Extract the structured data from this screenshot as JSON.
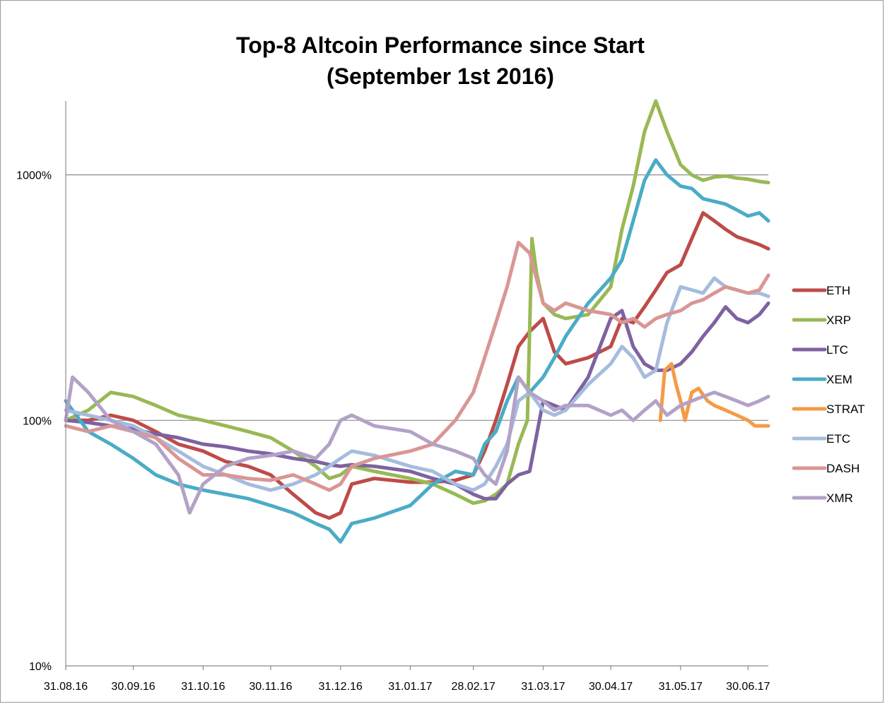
{
  "chart_data": {
    "type": "line",
    "title": "Top-8 Altcoin Performance since Start",
    "subtitle": "(September 1st 2016)",
    "xlabel": "",
    "ylabel": "",
    "y_scale": "log",
    "ylim": [
      10,
      2000
    ],
    "y_ticks": [
      {
        "value": 10,
        "label": "10%"
      },
      {
        "value": 100,
        "label": "100%"
      },
      {
        "value": 1000,
        "label": "1000%"
      }
    ],
    "x_ticks": [
      "31.08.16",
      "30.09.16",
      "31.10.16",
      "30.11.16",
      "31.12.16",
      "31.01.17",
      "28.02.17",
      "31.03.17",
      "30.04.17",
      "31.05.17",
      "30.06.17"
    ],
    "x_tick_dates": [
      "2016-08-31",
      "2016-09-30",
      "2016-10-31",
      "2016-11-30",
      "2016-12-31",
      "2017-01-31",
      "2017-02-28",
      "2017-03-31",
      "2017-04-30",
      "2017-05-31",
      "2017-06-30"
    ],
    "xlim": [
      "2016-08-31",
      "2017-07-09"
    ],
    "grid": "horizontal major",
    "legend_position": "right",
    "series": [
      {
        "name": "ETH",
        "color": "#be4b48",
        "x": [
          "2016-08-31",
          "2016-09-10",
          "2016-09-20",
          "2016-09-30",
          "2016-10-10",
          "2016-10-20",
          "2016-10-31",
          "2016-11-10",
          "2016-11-20",
          "2016-11-30",
          "2016-12-10",
          "2016-12-20",
          "2016-12-26",
          "2016-12-31",
          "2017-01-05",
          "2017-01-15",
          "2017-01-31",
          "2017-02-10",
          "2017-02-20",
          "2017-02-28",
          "2017-03-05",
          "2017-03-10",
          "2017-03-15",
          "2017-03-20",
          "2017-03-25",
          "2017-03-31",
          "2017-04-05",
          "2017-04-10",
          "2017-04-20",
          "2017-04-30",
          "2017-05-05",
          "2017-05-10",
          "2017-05-15",
          "2017-05-20",
          "2017-05-25",
          "2017-05-31",
          "2017-06-05",
          "2017-06-10",
          "2017-06-15",
          "2017-06-20",
          "2017-06-25",
          "2017-06-30",
          "2017-07-05",
          "2017-07-09"
        ],
        "y": [
          100,
          100,
          105,
          100,
          90,
          80,
          75,
          68,
          65,
          60,
          50,
          42,
          40,
          42,
          55,
          58,
          56,
          56,
          57,
          60,
          75,
          100,
          140,
          200,
          230,
          260,
          190,
          170,
          180,
          200,
          260,
          250,
          290,
          340,
          400,
          430,
          550,
          700,
          650,
          600,
          560,
          540,
          520,
          500
        ]
      },
      {
        "name": "XRP",
        "color": "#98b954",
        "x": [
          "2016-08-31",
          "2016-09-10",
          "2016-09-20",
          "2016-09-30",
          "2016-10-10",
          "2016-10-20",
          "2016-10-31",
          "2016-11-10",
          "2016-11-20",
          "2016-11-30",
          "2016-12-10",
          "2016-12-20",
          "2016-12-26",
          "2016-12-31",
          "2017-01-05",
          "2017-01-15",
          "2017-01-31",
          "2017-02-10",
          "2017-02-20",
          "2017-02-28",
          "2017-03-05",
          "2017-03-10",
          "2017-03-15",
          "2017-03-20",
          "2017-03-24",
          "2017-03-26",
          "2017-03-28",
          "2017-03-31",
          "2017-04-05",
          "2017-04-10",
          "2017-04-20",
          "2017-04-30",
          "2017-05-05",
          "2017-05-10",
          "2017-05-15",
          "2017-05-20",
          "2017-05-25",
          "2017-05-31",
          "2017-06-05",
          "2017-06-10",
          "2017-06-15",
          "2017-06-20",
          "2017-06-25",
          "2017-06-30",
          "2017-07-05",
          "2017-07-09"
        ],
        "y": [
          100,
          110,
          130,
          125,
          115,
          105,
          100,
          95,
          90,
          85,
          75,
          65,
          58,
          60,
          65,
          62,
          58,
          55,
          50,
          46,
          47,
          50,
          55,
          80,
          100,
          550,
          400,
          300,
          270,
          260,
          270,
          350,
          600,
          900,
          1500,
          2000,
          1500,
          1100,
          1000,
          950,
          980,
          990,
          970,
          960,
          940,
          930
        ]
      },
      {
        "name": "LTC",
        "color": "#7e62a1",
        "x": [
          "2016-08-31",
          "2016-09-10",
          "2016-09-20",
          "2016-09-30",
          "2016-10-10",
          "2016-10-20",
          "2016-10-31",
          "2016-11-10",
          "2016-11-20",
          "2016-11-30",
          "2016-12-10",
          "2016-12-20",
          "2016-12-26",
          "2016-12-31",
          "2017-01-05",
          "2017-01-15",
          "2017-01-31",
          "2017-02-10",
          "2017-02-20",
          "2017-02-28",
          "2017-03-05",
          "2017-03-10",
          "2017-03-15",
          "2017-03-20",
          "2017-03-25",
          "2017-03-31",
          "2017-04-05",
          "2017-04-10",
          "2017-04-20",
          "2017-04-30",
          "2017-05-05",
          "2017-05-10",
          "2017-05-15",
          "2017-05-20",
          "2017-05-25",
          "2017-05-31",
          "2017-06-05",
          "2017-06-10",
          "2017-06-15",
          "2017-06-20",
          "2017-06-25",
          "2017-06-30",
          "2017-07-05",
          "2017-07-09"
        ],
        "y": [
          100,
          98,
          95,
          92,
          88,
          85,
          80,
          78,
          75,
          73,
          70,
          68,
          66,
          65,
          66,
          65,
          62,
          58,
          55,
          50,
          48,
          48,
          55,
          60,
          62,
          120,
          115,
          110,
          150,
          260,
          280,
          200,
          170,
          160,
          160,
          170,
          190,
          220,
          250,
          290,
          260,
          250,
          270,
          300
        ]
      },
      {
        "name": "XEM",
        "color": "#4aacc5",
        "x": [
          "2016-08-31",
          "2016-09-10",
          "2016-09-20",
          "2016-09-30",
          "2016-10-10",
          "2016-10-20",
          "2016-10-31",
          "2016-11-10",
          "2016-11-20",
          "2016-11-30",
          "2016-12-10",
          "2016-12-20",
          "2016-12-26",
          "2016-12-31",
          "2017-01-05",
          "2017-01-15",
          "2017-01-31",
          "2017-02-10",
          "2017-02-20",
          "2017-02-28",
          "2017-03-05",
          "2017-03-10",
          "2017-03-15",
          "2017-03-20",
          "2017-03-25",
          "2017-03-31",
          "2017-04-05",
          "2017-04-10",
          "2017-04-20",
          "2017-04-30",
          "2017-05-05",
          "2017-05-10",
          "2017-05-15",
          "2017-05-20",
          "2017-05-25",
          "2017-05-31",
          "2017-06-05",
          "2017-06-10",
          "2017-06-15",
          "2017-06-20",
          "2017-06-25",
          "2017-06-30",
          "2017-07-05",
          "2017-07-09"
        ],
        "y": [
          120,
          90,
          80,
          70,
          60,
          55,
          52,
          50,
          48,
          45,
          42,
          38,
          36,
          32,
          38,
          40,
          45,
          55,
          62,
          60,
          80,
          90,
          120,
          150,
          130,
          150,
          180,
          220,
          300,
          380,
          450,
          650,
          950,
          1150,
          1000,
          900,
          880,
          800,
          780,
          760,
          720,
          680,
          700,
          650
        ]
      },
      {
        "name": "STRAT",
        "color": "#f69a47",
        "x": [
          "2017-05-22",
          "2017-05-24",
          "2017-05-27",
          "2017-05-29",
          "2017-05-31",
          "2017-06-02",
          "2017-06-05",
          "2017-06-08",
          "2017-06-12",
          "2017-06-15",
          "2017-06-20",
          "2017-06-25",
          "2017-06-30",
          "2017-07-03",
          "2017-07-06",
          "2017-07-09"
        ],
        "y": [
          100,
          160,
          170,
          140,
          120,
          100,
          130,
          135,
          120,
          115,
          110,
          105,
          100,
          95,
          95,
          95
        ]
      },
      {
        "name": "ETC",
        "color": "#a5bcdd",
        "x": [
          "2016-08-31",
          "2016-09-10",
          "2016-09-20",
          "2016-09-30",
          "2016-10-10",
          "2016-10-20",
          "2016-10-31",
          "2016-11-10",
          "2016-11-20",
          "2016-11-30",
          "2016-12-10",
          "2016-12-20",
          "2016-12-26",
          "2016-12-31",
          "2017-01-05",
          "2017-01-15",
          "2017-01-31",
          "2017-02-10",
          "2017-02-20",
          "2017-02-28",
          "2017-03-05",
          "2017-03-10",
          "2017-03-15",
          "2017-03-20",
          "2017-03-25",
          "2017-03-31",
          "2017-04-05",
          "2017-04-10",
          "2017-04-20",
          "2017-04-30",
          "2017-05-05",
          "2017-05-10",
          "2017-05-15",
          "2017-05-20",
          "2017-05-25",
          "2017-05-31",
          "2017-06-05",
          "2017-06-10",
          "2017-06-15",
          "2017-06-20",
          "2017-06-25",
          "2017-06-30",
          "2017-07-05",
          "2017-07-09"
        ],
        "y": [
          110,
          105,
          100,
          95,
          85,
          75,
          65,
          60,
          55,
          52,
          55,
          60,
          65,
          70,
          75,
          72,
          65,
          62,
          55,
          52,
          55,
          65,
          80,
          120,
          130,
          110,
          105,
          110,
          140,
          170,
          200,
          180,
          150,
          160,
          250,
          350,
          340,
          330,
          380,
          350,
          340,
          330,
          330,
          320
        ]
      },
      {
        "name": "DASH",
        "color": "#d99694",
        "x": [
          "2016-08-31",
          "2016-09-10",
          "2016-09-20",
          "2016-09-30",
          "2016-10-10",
          "2016-10-20",
          "2016-10-31",
          "2016-11-10",
          "2016-11-20",
          "2016-11-30",
          "2016-12-10",
          "2016-12-20",
          "2016-12-26",
          "2016-12-31",
          "2017-01-05",
          "2017-01-15",
          "2017-01-31",
          "2017-02-10",
          "2017-02-20",
          "2017-02-28",
          "2017-03-05",
          "2017-03-10",
          "2017-03-15",
          "2017-03-20",
          "2017-03-25",
          "2017-03-31",
          "2017-04-05",
          "2017-04-10",
          "2017-04-20",
          "2017-04-30",
          "2017-05-05",
          "2017-05-10",
          "2017-05-15",
          "2017-05-20",
          "2017-05-25",
          "2017-05-31",
          "2017-06-05",
          "2017-06-10",
          "2017-06-15",
          "2017-06-20",
          "2017-06-25",
          "2017-06-30",
          "2017-07-05",
          "2017-07-09"
        ],
        "y": [
          95,
          90,
          95,
          90,
          85,
          70,
          60,
          60,
          58,
          57,
          60,
          55,
          52,
          55,
          65,
          70,
          75,
          80,
          100,
          130,
          180,
          250,
          350,
          530,
          480,
          300,
          280,
          300,
          280,
          270,
          250,
          260,
          240,
          260,
          270,
          280,
          300,
          310,
          330,
          350,
          340,
          330,
          340,
          390
        ]
      },
      {
        "name": "XMR",
        "color": "#b3a2c7",
        "x": [
          "2016-08-31",
          "2016-09-03",
          "2016-09-10",
          "2016-09-20",
          "2016-09-30",
          "2016-10-10",
          "2016-10-20",
          "2016-10-25",
          "2016-10-31",
          "2016-11-10",
          "2016-11-20",
          "2016-11-30",
          "2016-12-10",
          "2016-12-20",
          "2016-12-26",
          "2016-12-31",
          "2017-01-05",
          "2017-01-15",
          "2017-01-31",
          "2017-02-10",
          "2017-02-20",
          "2017-02-28",
          "2017-03-05",
          "2017-03-10",
          "2017-03-15",
          "2017-03-20",
          "2017-03-25",
          "2017-03-31",
          "2017-04-05",
          "2017-04-10",
          "2017-04-20",
          "2017-04-30",
          "2017-05-05",
          "2017-05-10",
          "2017-05-15",
          "2017-05-20",
          "2017-05-25",
          "2017-05-31",
          "2017-06-05",
          "2017-06-10",
          "2017-06-15",
          "2017-06-20",
          "2017-06-25",
          "2017-06-30",
          "2017-07-05",
          "2017-07-09"
        ],
        "y": [
          100,
          150,
          130,
          100,
          90,
          80,
          60,
          42,
          55,
          65,
          70,
          72,
          75,
          70,
          80,
          100,
          105,
          95,
          90,
          80,
          75,
          70,
          60,
          55,
          75,
          150,
          130,
          120,
          110,
          115,
          115,
          105,
          110,
          100,
          110,
          120,
          105,
          115,
          120,
          125,
          130,
          125,
          120,
          115,
          120,
          125
        ]
      }
    ]
  }
}
